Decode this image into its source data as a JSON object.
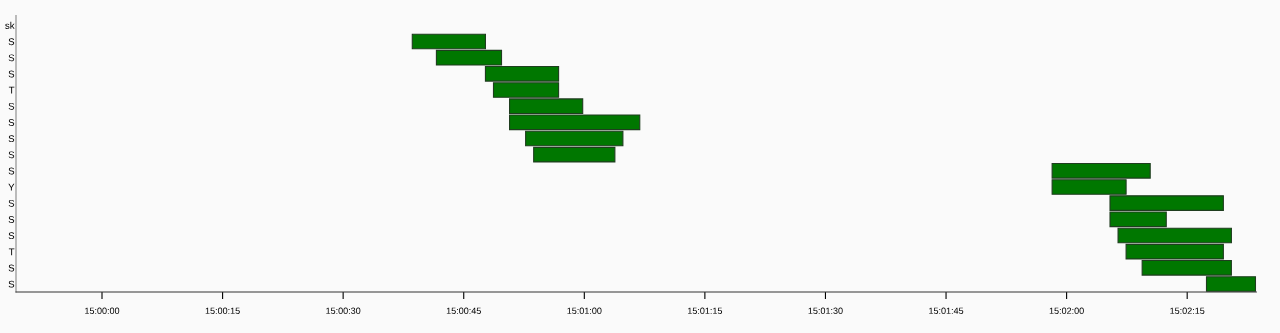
{
  "chart_data": {
    "type": "bar",
    "orientation": "horizontal",
    "categories": [
      "sk",
      "S",
      "S",
      "S",
      "T",
      "S",
      "S",
      "S",
      "S",
      "S",
      "Y",
      "S",
      "S",
      "S",
      "T",
      "S",
      "S"
    ],
    "base": [
      null,
      15.010722,
      15.011556,
      15.01325,
      15.013528,
      15.014083,
      15.014083,
      15.014639,
      15.014917,
      15.032833,
      15.032833,
      15.034833,
      15.034833,
      15.035111,
      15.035389,
      15.035944,
      15.038167
    ],
    "values": [
      null,
      0.002528,
      0.00225,
      0.002528,
      0.00225,
      0.002528,
      0.0045,
      0.003361,
      0.002806,
      0.003389,
      0.002556,
      0.003917,
      0.001944,
      0.003917,
      0.003361,
      0.003083,
      0.001694
    ],
    "color": "#007700",
    "xlim": [
      14.997028,
      15.039889
    ],
    "xticks": [
      {
        "value": 15.0,
        "label": "15:00:00"
      },
      {
        "value": 15.004167,
        "label": "15:00:15"
      },
      {
        "value": 15.008333,
        "label": "15:00:30"
      },
      {
        "value": 15.0125,
        "label": "15:00:45"
      },
      {
        "value": 15.016667,
        "label": "15:01:00"
      },
      {
        "value": 15.020833,
        "label": "15:01:15"
      },
      {
        "value": 15.025,
        "label": "15:01:30"
      },
      {
        "value": 15.029167,
        "label": "15:01:45"
      },
      {
        "value": 15.033333,
        "label": "15:02:00"
      },
      {
        "value": 15.0375,
        "label": "15:02:15"
      }
    ],
    "grid": false
  }
}
